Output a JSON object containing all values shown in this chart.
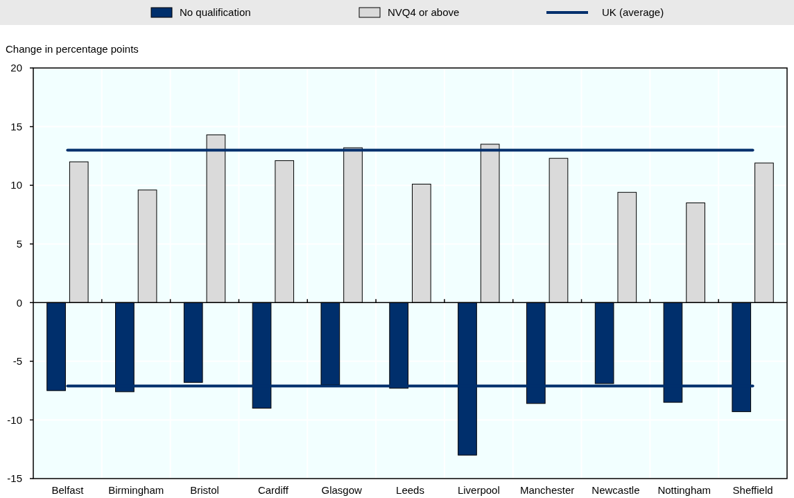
{
  "chart_data": {
    "type": "bar",
    "ylabel": "Change in percentage points",
    "categories": [
      "Belfast",
      "Birmingham",
      "Bristol",
      "Cardiff",
      "Glasgow",
      "Leeds",
      "Liverpool",
      "Manchester",
      "Newcastle",
      "Nottingham",
      "Sheffield"
    ],
    "series": [
      {
        "name": "No qualification",
        "color": "#002f6c",
        "values": [
          -7.5,
          -7.6,
          -6.8,
          -9.0,
          -7.0,
          -7.3,
          -13.0,
          -8.6,
          -6.9,
          -8.5,
          -9.3
        ]
      },
      {
        "name": "NVQ4 or above",
        "color": "#dadada",
        "values": [
          12.0,
          9.6,
          14.3,
          12.1,
          13.2,
          10.1,
          13.5,
          12.3,
          9.4,
          8.5,
          11.9
        ]
      },
      {
        "name": "UK (average)",
        "type": "line",
        "color": "#002f6c",
        "values": [
          13.0,
          13.0,
          13.0,
          13.0,
          13.0,
          13.0,
          13.0,
          13.0,
          13.0,
          13.0,
          13.0
        ]
      },
      {
        "type": "line",
        "color": "#002f6c",
        "values": [
          -7.1,
          -7.1,
          -7.1,
          -7.1,
          -7.1,
          -7.1,
          -7.1,
          -7.1,
          -7.1,
          -7.1,
          -7.1
        ]
      }
    ],
    "ylim": [
      -15,
      20
    ],
    "yticks": [
      -15,
      -10,
      -5,
      0,
      5,
      10,
      15,
      20
    ],
    "grid": true,
    "legend": "top"
  }
}
